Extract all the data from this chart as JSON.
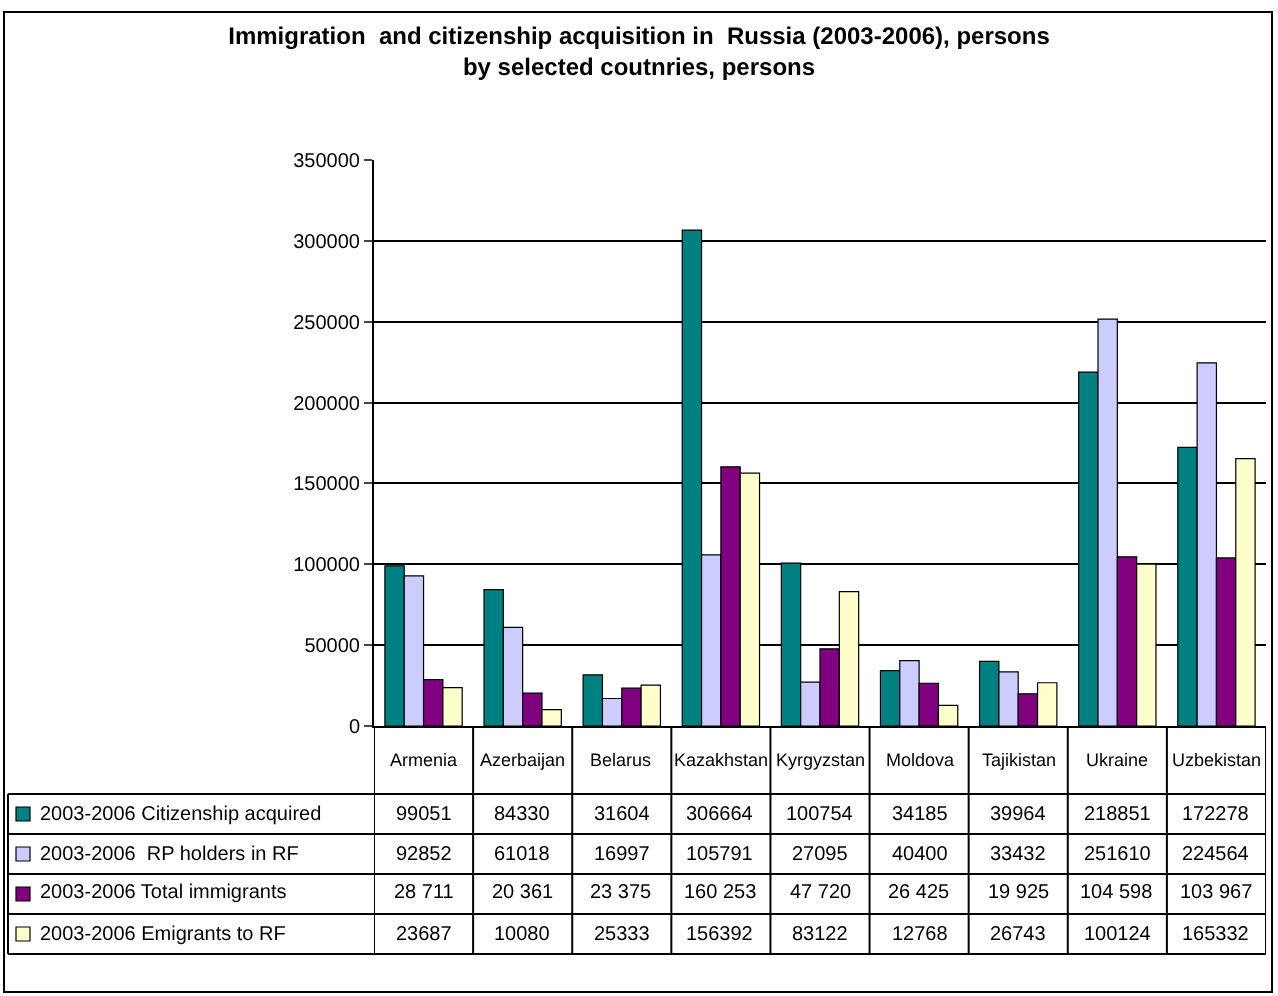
{
  "chart_data": {
    "type": "bar",
    "title": "Immigration  and citizenship acquisition in  Russia (2003-2006), persons\nby selected coutnries, persons",
    "categories": [
      "Armenia",
      "Azerbaijan",
      "Belarus",
      "Kazakhstan",
      "Kyrgyzstan",
      "Moldova",
      "Tajikistan",
      "Ukraine",
      "Uzbekistan"
    ],
    "series": [
      {
        "name": "2003-2006 Citizenship acquired",
        "color": "#008080",
        "values": [
          99051,
          84330,
          31604,
          306664,
          100754,
          34185,
          39964,
          218851,
          172278
        ],
        "value_labels": [
          "99051",
          "84330",
          "31604",
          "306664",
          "100754",
          "34185",
          "39964",
          "218851",
          "172278"
        ]
      },
      {
        "name": "2003-2006  RP holders in RF",
        "color": "#ccccff",
        "values": [
          92852,
          61018,
          16997,
          105791,
          27095,
          40400,
          33432,
          251610,
          224564
        ],
        "value_labels": [
          "92852",
          "61018",
          "16997",
          "105791",
          "27095",
          "40400",
          "33432",
          "251610",
          "224564"
        ]
      },
      {
        "name": "2003-2006 Total immigrants",
        "color": "#800080",
        "values": [
          28711,
          20361,
          23375,
          160253,
          47720,
          26425,
          19925,
          104598,
          103967
        ],
        "value_labels": [
          "28 711",
          "20 361",
          "23 375",
          "160 253",
          "47 720",
          "26 425",
          "19 925",
          "104 598",
          "103 967"
        ]
      },
      {
        "name": "2003-2006 Emigrants to RF",
        "color": "#ffffcc",
        "values": [
          23687,
          10080,
          25333,
          156392,
          83122,
          12768,
          26743,
          100124,
          165332
        ],
        "value_labels": [
          "23687",
          "10080",
          "25333",
          "156392",
          "83122",
          "12768",
          "26743",
          "100124",
          "165332"
        ]
      }
    ],
    "ylim": [
      0,
      350000
    ],
    "yticks": [
      0,
      50000,
      100000,
      150000,
      200000,
      250000,
      300000,
      350000
    ],
    "grid": "y",
    "legend": "bottom"
  }
}
